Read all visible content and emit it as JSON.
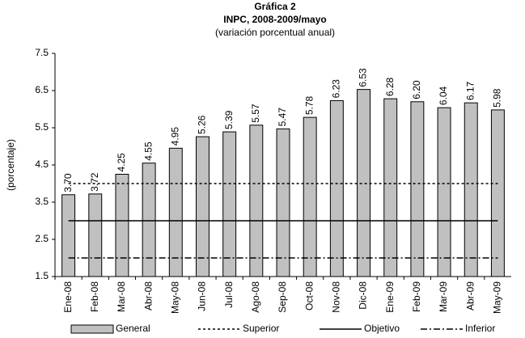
{
  "chart_data": {
    "type": "bar",
    "title": "Gráfica 2",
    "subtitle": "INPC, 2008-2009/mayo",
    "note": "(variación porcentual anual)",
    "y_label": "(porcentaje)",
    "categories": [
      "Ene-08",
      "Feb-08",
      "Mar-08",
      "Abr-08",
      "May-08",
      "Jun-08",
      "Jul-08",
      "Ago-08",
      "Sep-08",
      "Oct-08",
      "Nov-08",
      "Dic-08",
      "Ene-09",
      "Feb-09",
      "Mar-09",
      "Abr-09",
      "May-09"
    ],
    "series": [
      {
        "name": "General",
        "type": "bar",
        "color": "#c0c0c0",
        "values": [
          3.7,
          3.72,
          4.25,
          4.55,
          4.95,
          5.26,
          5.39,
          5.57,
          5.47,
          5.78,
          6.23,
          6.53,
          6.28,
          6.2,
          6.04,
          6.17,
          5.98
        ],
        "value_labels": [
          "3.70",
          "3.72",
          "4.25",
          "4.55",
          "4.95",
          "5.26",
          "5.39",
          "5.57",
          "5.47",
          "5.78",
          "6.23",
          "6.53",
          "6.28",
          "6.20",
          "6.04",
          "6.17",
          "5.98"
        ]
      },
      {
        "name": "Superior",
        "type": "line",
        "color": "#000000",
        "dash": "dotted",
        "values": [
          4,
          4,
          4,
          4,
          4,
          4,
          4,
          4,
          4,
          4,
          4,
          4,
          4,
          4,
          4,
          4,
          4
        ]
      },
      {
        "name": "Objetivo",
        "type": "line",
        "color": "#000000",
        "dash": "solid",
        "values": [
          3,
          3,
          3,
          3,
          3,
          3,
          3,
          3,
          3,
          3,
          3,
          3,
          3,
          3,
          3,
          3,
          3
        ]
      },
      {
        "name": "Inferior",
        "type": "line",
        "color": "#000000",
        "dash": "dashdot",
        "values": [
          2,
          2,
          2,
          2,
          2,
          2,
          2,
          2,
          2,
          2,
          2,
          2,
          2,
          2,
          2,
          2,
          2
        ]
      }
    ],
    "ylim": [
      1.5,
      7.5
    ],
    "yticks": [
      1.5,
      2.5,
      3.5,
      4.5,
      5.5,
      6.5,
      7.5
    ],
    "legend": "bottom"
  }
}
